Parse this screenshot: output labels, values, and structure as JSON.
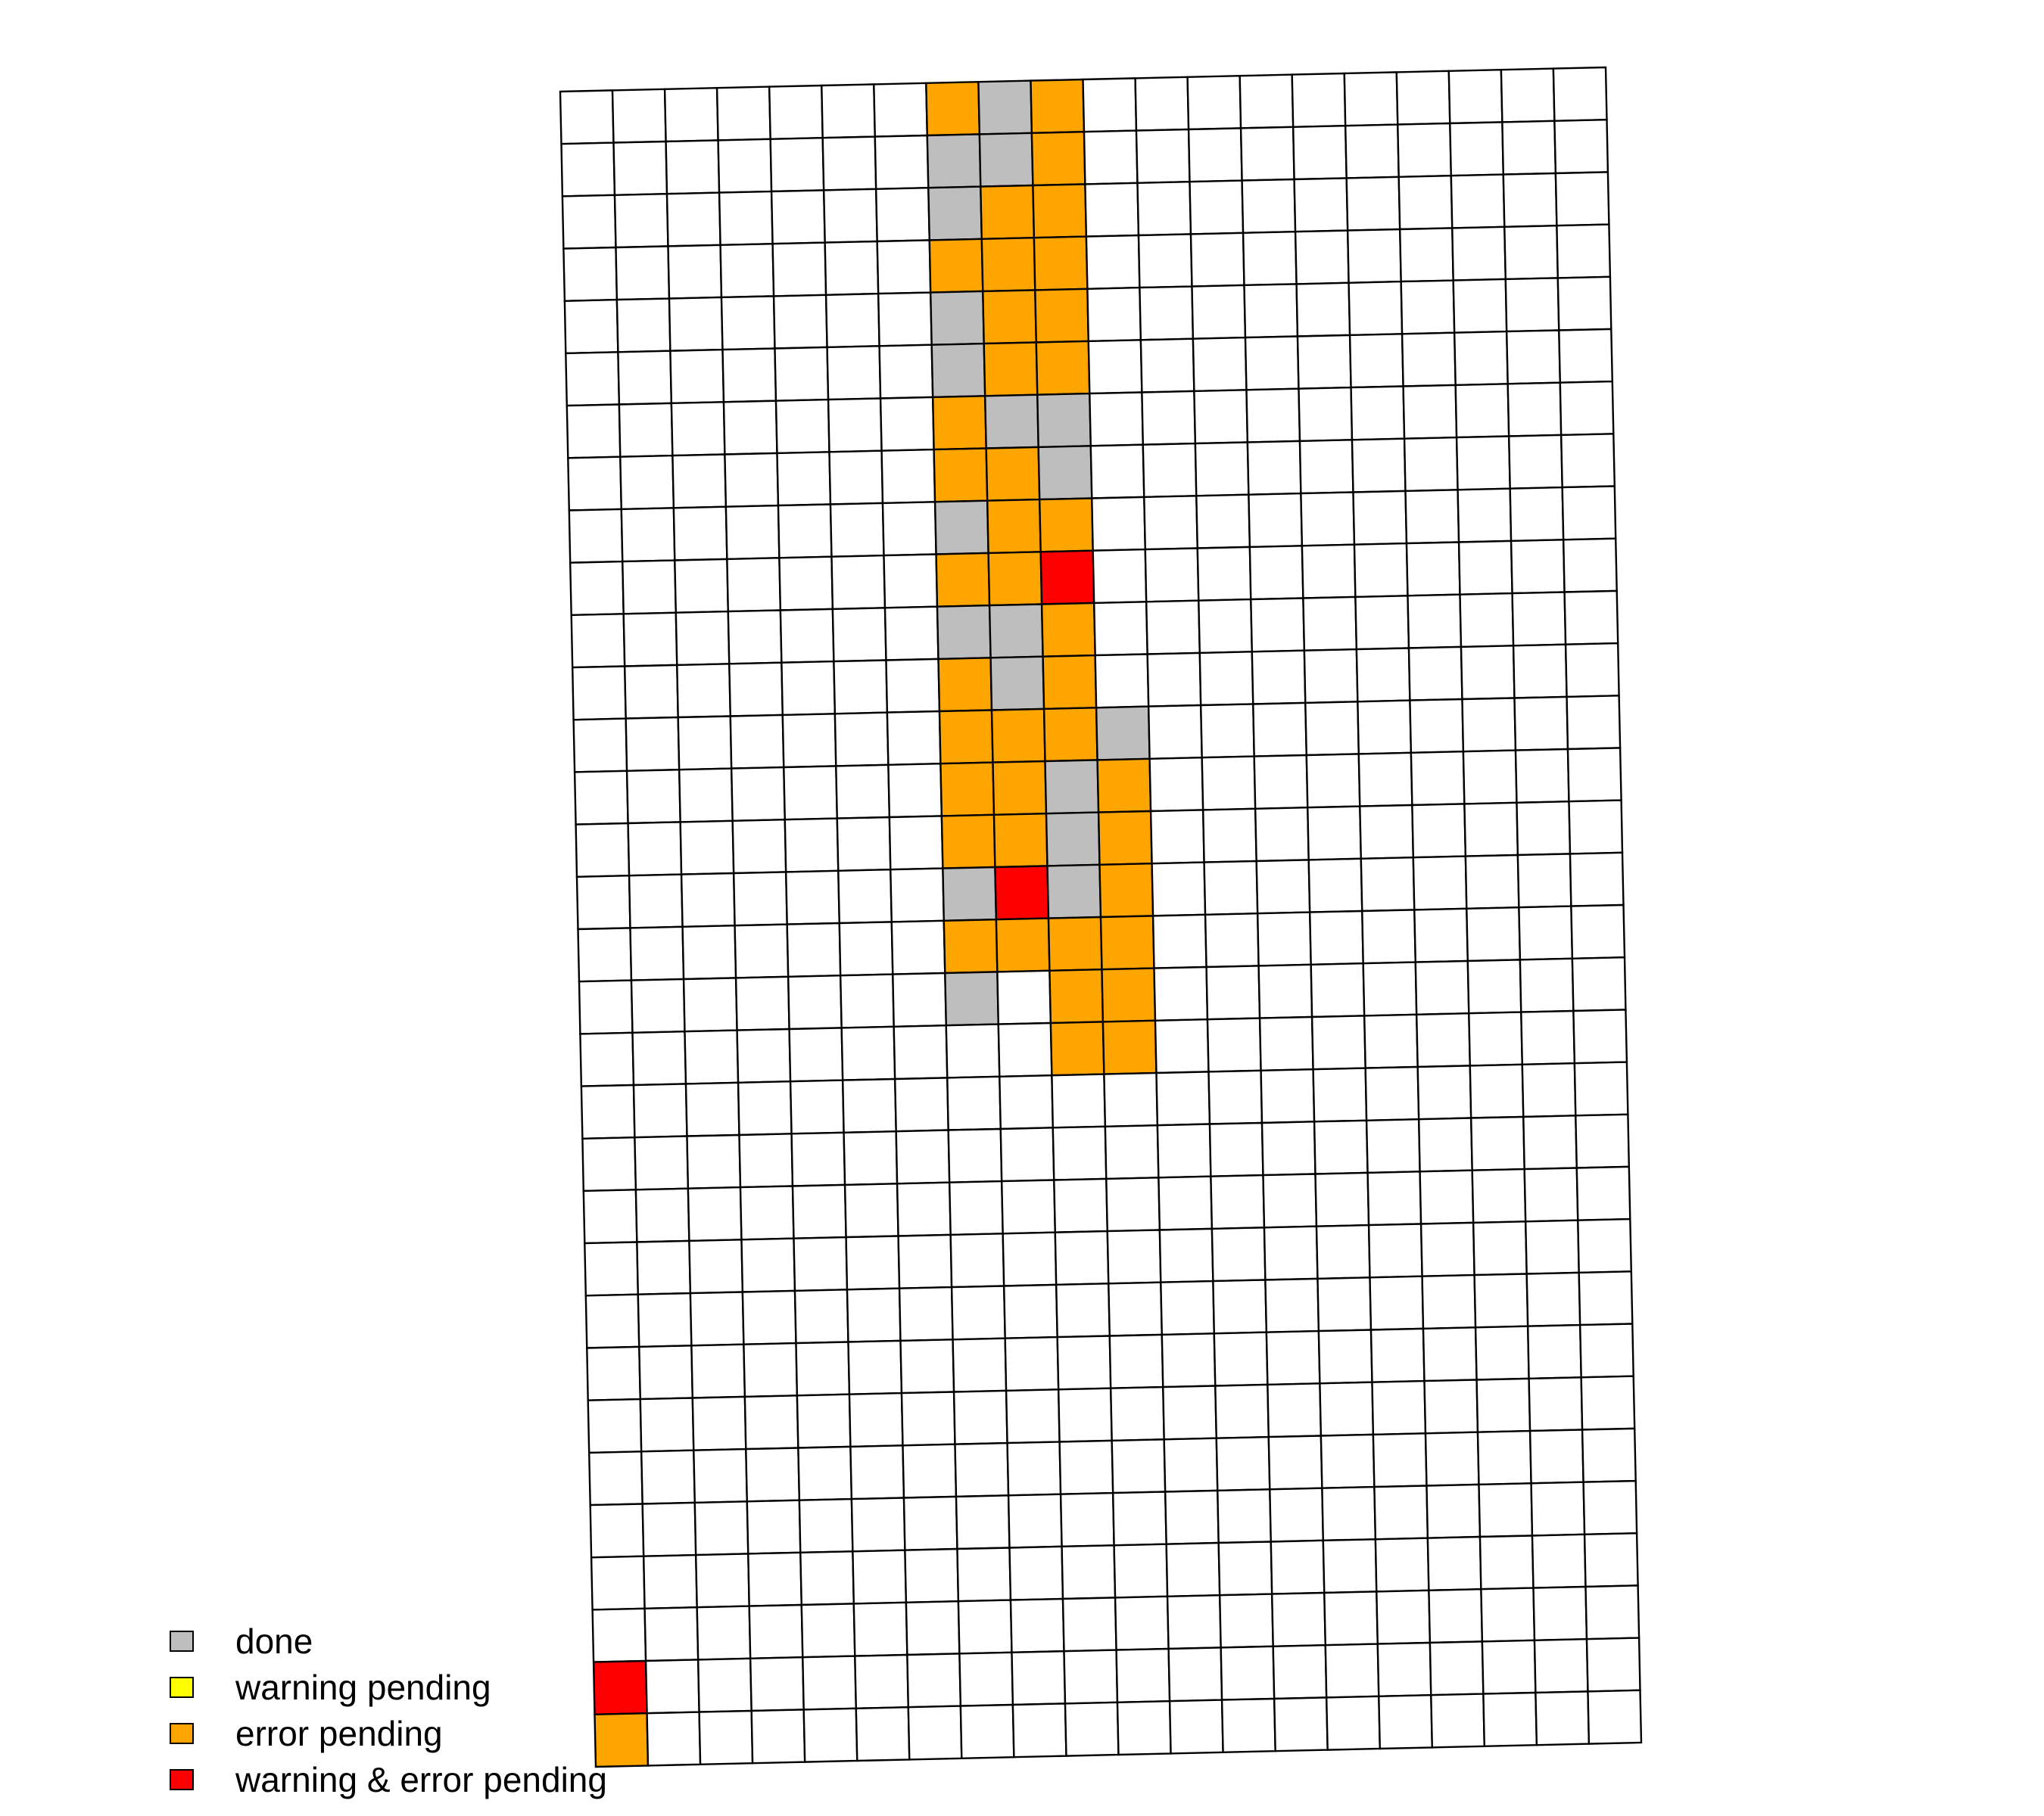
{
  "chart_data": {
    "type": "heatmap",
    "grid": {
      "rows": 32,
      "cols": 20
    },
    "colors": {
      "none": "#FFFFFF",
      "done": "#BEBEBE",
      "warning pending": "#FFFF00",
      "error pending": "#FFA500",
      "warning & error pending": "#FF0000"
    },
    "legend": {
      "placement": "bottom-left",
      "entries": [
        {
          "key": "done",
          "label": "done",
          "color": "#BEBEBE"
        },
        {
          "key": "warning pending",
          "label": "warning pending",
          "color": "#FFFF00"
        },
        {
          "key": "error pending",
          "label": "error pending",
          "color": "#FFA500"
        },
        {
          "key": "warning & error pending",
          "label": "warning & error pending",
          "color": "#FF0000"
        }
      ]
    },
    "cells": [
      {
        "row": 0,
        "col": 7,
        "status": "error pending"
      },
      {
        "row": 0,
        "col": 8,
        "status": "done"
      },
      {
        "row": 0,
        "col": 9,
        "status": "error pending"
      },
      {
        "row": 1,
        "col": 7,
        "status": "done"
      },
      {
        "row": 1,
        "col": 8,
        "status": "done"
      },
      {
        "row": 1,
        "col": 9,
        "status": "error pending"
      },
      {
        "row": 2,
        "col": 7,
        "status": "done"
      },
      {
        "row": 2,
        "col": 8,
        "status": "error pending"
      },
      {
        "row": 2,
        "col": 9,
        "status": "error pending"
      },
      {
        "row": 3,
        "col": 7,
        "status": "error pending"
      },
      {
        "row": 3,
        "col": 8,
        "status": "error pending"
      },
      {
        "row": 3,
        "col": 9,
        "status": "error pending"
      },
      {
        "row": 4,
        "col": 7,
        "status": "done"
      },
      {
        "row": 4,
        "col": 8,
        "status": "error pending"
      },
      {
        "row": 4,
        "col": 9,
        "status": "error pending"
      },
      {
        "row": 5,
        "col": 7,
        "status": "done"
      },
      {
        "row": 5,
        "col": 8,
        "status": "error pending"
      },
      {
        "row": 5,
        "col": 9,
        "status": "error pending"
      },
      {
        "row": 6,
        "col": 7,
        "status": "error pending"
      },
      {
        "row": 6,
        "col": 8,
        "status": "done"
      },
      {
        "row": 6,
        "col": 9,
        "status": "done"
      },
      {
        "row": 7,
        "col": 7,
        "status": "error pending"
      },
      {
        "row": 7,
        "col": 8,
        "status": "error pending"
      },
      {
        "row": 7,
        "col": 9,
        "status": "done"
      },
      {
        "row": 8,
        "col": 7,
        "status": "done"
      },
      {
        "row": 8,
        "col": 8,
        "status": "error pending"
      },
      {
        "row": 8,
        "col": 9,
        "status": "error pending"
      },
      {
        "row": 9,
        "col": 7,
        "status": "error pending"
      },
      {
        "row": 9,
        "col": 8,
        "status": "error pending"
      },
      {
        "row": 9,
        "col": 9,
        "status": "warning & error pending"
      },
      {
        "row": 10,
        "col": 7,
        "status": "done"
      },
      {
        "row": 10,
        "col": 8,
        "status": "done"
      },
      {
        "row": 10,
        "col": 9,
        "status": "error pending"
      },
      {
        "row": 11,
        "col": 7,
        "status": "error pending"
      },
      {
        "row": 11,
        "col": 8,
        "status": "done"
      },
      {
        "row": 11,
        "col": 9,
        "status": "error pending"
      },
      {
        "row": 12,
        "col": 7,
        "status": "error pending"
      },
      {
        "row": 12,
        "col": 8,
        "status": "error pending"
      },
      {
        "row": 12,
        "col": 9,
        "status": "error pending"
      },
      {
        "row": 12,
        "col": 10,
        "status": "done"
      },
      {
        "row": 13,
        "col": 7,
        "status": "error pending"
      },
      {
        "row": 13,
        "col": 8,
        "status": "error pending"
      },
      {
        "row": 13,
        "col": 9,
        "status": "done"
      },
      {
        "row": 13,
        "col": 10,
        "status": "error pending"
      },
      {
        "row": 14,
        "col": 7,
        "status": "error pending"
      },
      {
        "row": 14,
        "col": 8,
        "status": "error pending"
      },
      {
        "row": 14,
        "col": 9,
        "status": "done"
      },
      {
        "row": 14,
        "col": 10,
        "status": "error pending"
      },
      {
        "row": 15,
        "col": 7,
        "status": "done"
      },
      {
        "row": 15,
        "col": 8,
        "status": "warning & error pending"
      },
      {
        "row": 15,
        "col": 9,
        "status": "done"
      },
      {
        "row": 15,
        "col": 10,
        "status": "error pending"
      },
      {
        "row": 16,
        "col": 7,
        "status": "error pending"
      },
      {
        "row": 16,
        "col": 8,
        "status": "error pending"
      },
      {
        "row": 16,
        "col": 9,
        "status": "error pending"
      },
      {
        "row": 16,
        "col": 10,
        "status": "error pending"
      },
      {
        "row": 17,
        "col": 7,
        "status": "done"
      },
      {
        "row": 17,
        "col": 9,
        "status": "error pending"
      },
      {
        "row": 17,
        "col": 10,
        "status": "error pending"
      },
      {
        "row": 18,
        "col": 9,
        "status": "error pending"
      },
      {
        "row": 18,
        "col": 10,
        "status": "error pending"
      },
      {
        "row": 30,
        "col": 0,
        "status": "warning & error pending"
      },
      {
        "row": 31,
        "col": 0,
        "status": "error pending"
      }
    ]
  }
}
